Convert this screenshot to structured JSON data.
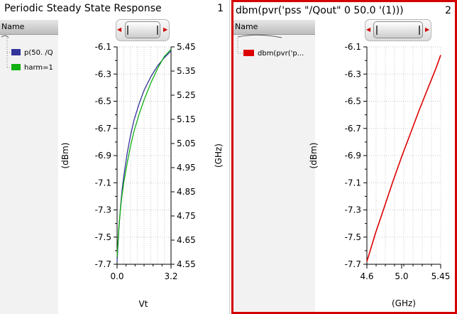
{
  "panels": [
    {
      "title": "Periodic Steady State Response",
      "number": "1",
      "legend_header": "Name",
      "legend_items": [
        {
          "label": "p(50. /Q",
          "color": "#33339a"
        },
        {
          "label": "harm=1",
          "color": "#11b011"
        }
      ]
    },
    {
      "title": "dbm(pvr('pss \"/Qout\" 0 50.0 '(1)))",
      "number": "2",
      "legend_header": "Name",
      "legend_items": [
        {
          "label": "dbm(pvr('p...",
          "color": "#dd0000"
        }
      ]
    }
  ],
  "chart_data": [
    {
      "type": "line",
      "xlabel": "Vt",
      "ylabel": "(dBm)",
      "y2label": "(GHz)",
      "xlim": [
        0.0,
        3.2
      ],
      "xticks": [
        "0.0",
        "3.2"
      ],
      "ylim": [
        -7.7,
        -6.1
      ],
      "yticks": [
        "-6.1",
        "-6.3",
        "-6.5",
        "-6.7",
        "-6.9",
        "-7.1",
        "-7.3",
        "-7.5",
        "-7.7"
      ],
      "y2lim": [
        4.55,
        5.45
      ],
      "y2ticks": [
        "5.45",
        "5.35",
        "5.25",
        "5.15",
        "5.05",
        "4.95",
        "4.85",
        "4.75",
        "4.65",
        "4.55"
      ],
      "grid": true,
      "series": [
        {
          "name": "p(50. /Q",
          "axis": "left",
          "color": "#33339a",
          "x": [
            0.0,
            0.1,
            0.2,
            0.3,
            0.4,
            0.6,
            0.8,
            1.0,
            1.3,
            1.6,
            2.0,
            2.4,
            2.8,
            3.2
          ],
          "values": [
            -7.68,
            -7.45,
            -7.28,
            -7.15,
            -7.05,
            -6.88,
            -6.75,
            -6.64,
            -6.52,
            -6.42,
            -6.32,
            -6.24,
            -6.18,
            -6.13
          ]
        },
        {
          "name": "harm=1",
          "axis": "right",
          "color": "#11b011",
          "x": [
            0.0,
            0.1,
            0.2,
            0.3,
            0.4,
            0.6,
            0.8,
            1.0,
            1.3,
            1.6,
            2.0,
            2.4,
            2.8,
            3.2
          ],
          "values": [
            4.58,
            4.7,
            4.78,
            4.84,
            4.89,
            4.97,
            5.04,
            5.1,
            5.17,
            5.23,
            5.3,
            5.36,
            5.41,
            5.44
          ]
        }
      ]
    },
    {
      "type": "line",
      "xlabel": "(GHz)",
      "ylabel": "(dBm)",
      "xlim": [
        4.6,
        5.45
      ],
      "xticks": [
        "4.6",
        "5.0",
        "5.45"
      ],
      "ylim": [
        -7.7,
        -6.1
      ],
      "yticks": [
        "-6.1",
        "-6.3",
        "-6.5",
        "-6.7",
        "-6.9",
        "-7.1",
        "-7.3",
        "-7.5",
        "-7.7"
      ],
      "grid": true,
      "series": [
        {
          "name": "dbm(pvr('p...",
          "color": "#dd0000",
          "x": [
            4.6,
            4.7,
            4.8,
            4.9,
            5.0,
            5.1,
            5.2,
            5.3,
            5.4,
            5.45
          ],
          "values": [
            -7.68,
            -7.47,
            -7.28,
            -7.09,
            -6.91,
            -6.74,
            -6.57,
            -6.41,
            -6.25,
            -6.16
          ]
        }
      ]
    }
  ]
}
